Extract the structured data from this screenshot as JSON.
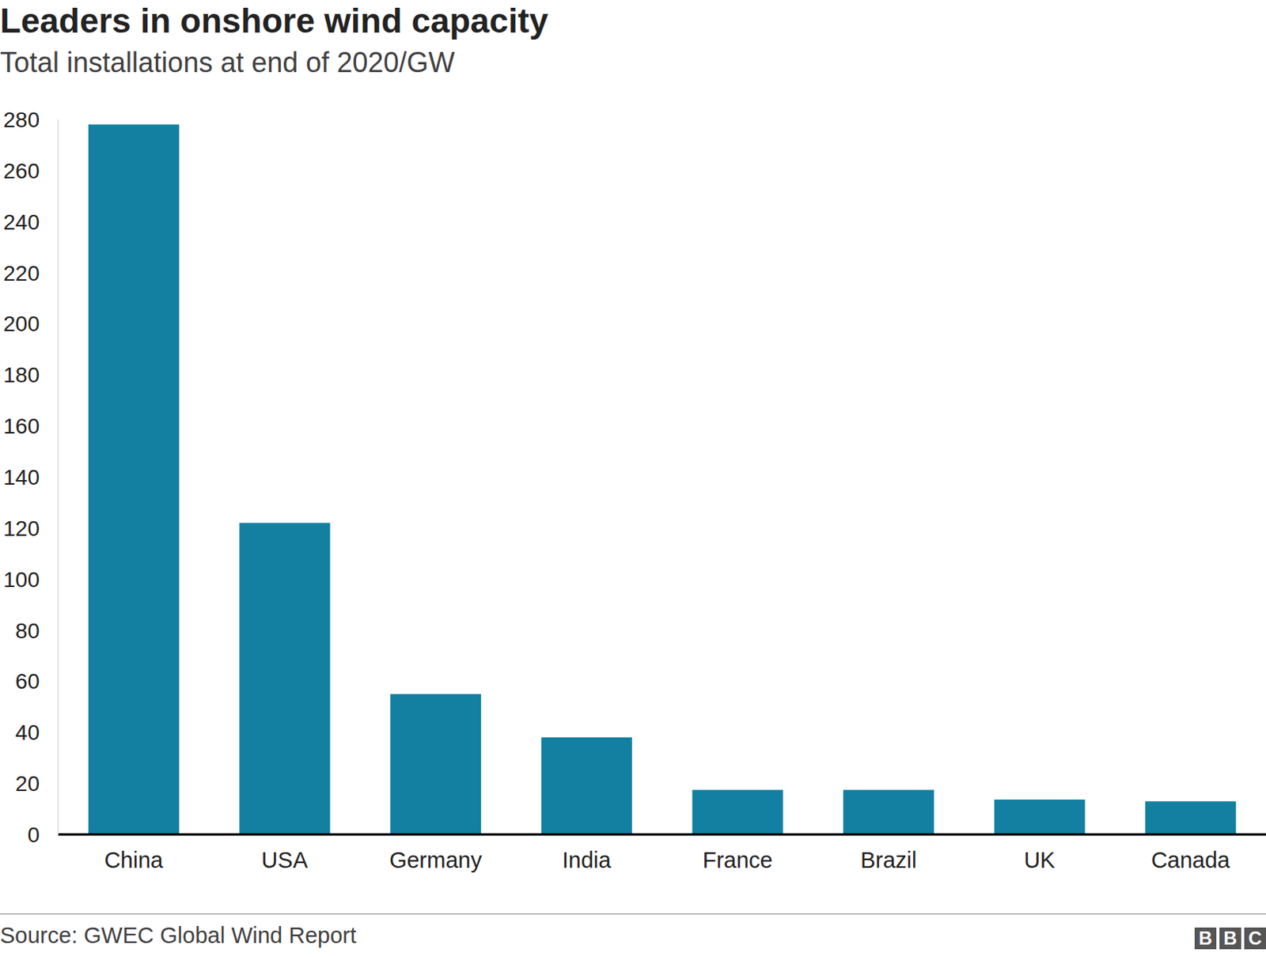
{
  "chart_data": {
    "type": "bar",
    "title": "Leaders in onshore wind capacity",
    "subtitle": "Total installations at end of 2020/GW",
    "source": "Source: GWEC Global Wind Report",
    "logo": "BBC",
    "categories": [
      "China",
      "USA",
      "Germany",
      "India",
      "France",
      "Brazil",
      "UK",
      "Canada"
    ],
    "values": [
      278,
      122,
      55,
      38,
      17.5,
      17.5,
      13.7,
      13
    ],
    "color": "#1380a1",
    "ylim": [
      0,
      280
    ],
    "yticks": [
      0,
      20,
      40,
      60,
      80,
      100,
      120,
      140,
      160,
      180,
      200,
      220,
      240,
      260,
      280
    ],
    "grid": false
  }
}
